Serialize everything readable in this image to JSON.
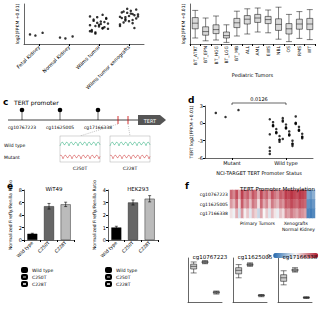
{
  "chart_data": [
    {
      "type": "scatter",
      "ylabel": "log2(FPKM +0.01)",
      "categories": [
        "Fetal Kidney",
        "Normal Kidney",
        "Wilms tumor",
        "Wilms tumor xenografts"
      ],
      "values": [
        [
          -3.6,
          -3.2,
          -3.9
        ],
        [
          -4.4,
          -4.1,
          -4.6
        ],
        [
          -2.8,
          -2.1,
          -1.5,
          -0.9,
          -0.4,
          0.1,
          0.5,
          -1.2,
          -2.5,
          -1.8,
          -0.7,
          0.9,
          1.3,
          -3.1,
          -2.2,
          -1.0,
          -0.2,
          0.3,
          -1.6,
          -2.9,
          -0.5,
          0.7,
          -1.3,
          -2.0,
          -3.4
        ],
        [
          -1.5,
          -0.8,
          0.2,
          0.9,
          1.6,
          2.1,
          2.6,
          -0.3,
          0.5,
          1.2,
          1.8,
          -1.1,
          0.0,
          0.7,
          1.4,
          2.3,
          -0.6,
          0.4,
          1.0,
          1.9,
          -2.0,
          2.8,
          0.8,
          1.5,
          -0.1
        ]
      ],
      "color": "#000000",
      "ylim": [
        -6,
        4
      ],
      "tick_labels": "x",
      "grid": false
    },
    {
      "type": "boxplot",
      "xlabel": "Pediatric Tumors",
      "ylabel": "log2(FPKM +0.01)",
      "categories": [
        "BT_ATRT",
        "BT_EPN",
        "BT_HGG",
        "BT_LGG",
        "BT_MB",
        "ALL",
        "AML",
        "EWS",
        "NBL",
        "OS",
        "RMS",
        "WT"
      ],
      "values": [
        [
          -4.5,
          -2.2,
          -0.8,
          0.6,
          2.4
        ],
        [
          -5.2,
          -3.8,
          -2.9,
          -1.7,
          0.5
        ],
        [
          -5.0,
          -3.4,
          -2.4,
          -1.2,
          1.0
        ],
        [
          -5.6,
          -4.5,
          -3.9,
          -3.0,
          -1.2
        ],
        [
          -4.0,
          -1.9,
          -0.7,
          0.4,
          2.2
        ],
        [
          -3.5,
          -1.0,
          0.2,
          1.1,
          2.8
        ],
        [
          -3.0,
          -0.6,
          0.5,
          1.4,
          3.0
        ],
        [
          -3.2,
          -0.9,
          0.1,
          0.9,
          2.5
        ],
        [
          -4.8,
          -2.6,
          -1.1,
          0.3,
          3.2
        ],
        [
          -5.4,
          -3.5,
          -2.2,
          -0.9,
          1.4
        ],
        [
          -4.6,
          -2.3,
          -1.0,
          0.2,
          2.1
        ],
        [
          -4.9,
          -2.4,
          -1.0,
          0.4,
          2.6
        ]
      ],
      "color": "#d9d9d9",
      "ylim": [
        -6,
        4
      ],
      "tick_labels": "x",
      "grid": false
    },
    {
      "label": "d",
      "type": "scatter",
      "xlabel": "NCI-TARGET TERT Promoter Status",
      "ylabel": "TERT log2(FPKM +0.01)",
      "categories": [
        "Mutant",
        "Wild type"
      ],
      "values": [
        [
          1.8,
          2.3,
          1.1
        ],
        [
          -4.8,
          -3.9,
          -3.2,
          -2.6,
          -2.1,
          -1.7,
          -1.3,
          -0.9,
          -0.5,
          -0.1,
          0.3,
          0.7,
          -3.5,
          -2.9,
          -2.3,
          -1.9,
          -1.5,
          -1.1,
          -0.7,
          -0.3,
          0.1,
          0.5,
          -4.2,
          -3.6,
          -2.8,
          -2.4,
          -2.0,
          -1.6,
          -1.2,
          -0.8,
          -0.4,
          0.0,
          0.9,
          -5.3,
          -3.0,
          -2.2,
          -1.8,
          -1.4,
          -1.0,
          -0.6,
          -0.2,
          0.2,
          1.2,
          -2.7,
          -1.9
        ]
      ],
      "color": "#000000",
      "ylim": [
        -6,
        3
      ],
      "yticks": [
        -6,
        -3,
        0,
        3
      ],
      "annotation": "0.0126",
      "grid": false
    },
    {
      "label": "e",
      "type": "bar",
      "title": "WiT49",
      "ylabel": "Normalized Firefly/Renilla Ratio",
      "categories": [
        "Wild type",
        "C250T",
        "C228T"
      ],
      "values": [
        1,
        5.4,
        5.7
      ],
      "errors": [
        0.08,
        0.45,
        0.35
      ],
      "colors": [
        "#000000",
        "#666666",
        "#bbbbbb"
      ],
      "ylim": [
        0,
        8
      ],
      "yticks": [
        0,
        2,
        4,
        6,
        8
      ],
      "legend": "bottom",
      "grid": false
    },
    {
      "type": "bar",
      "title": "HEK293",
      "ylabel": "Normalized Firefly/Renilla Ratio",
      "categories": [
        "Wild type",
        "C250T",
        "C228T"
      ],
      "values": [
        1,
        3.0,
        3.3
      ],
      "errors": [
        0.1,
        0.2,
        0.25
      ],
      "colors": [
        "#000000",
        "#666666",
        "#bbbbbb"
      ],
      "ylim": [
        0,
        4
      ],
      "yticks": [
        0,
        1,
        2,
        3,
        4
      ],
      "legend": "bottom",
      "grid": false
    },
    {
      "label": "f",
      "type": "heatmap",
      "title": "TERT Promoter Methylation",
      "rows": [
        "cg10767223",
        "cg11625005",
        "cg17166338"
      ],
      "groups": [
        {
          "name": "Primary Tumors",
          "cells": [
            [
              0.82,
              0.75,
              0.88,
              0.69,
              0.91,
              0.78,
              0.84,
              0.72,
              0.86,
              0.8,
              0.66,
              0.89,
              0.77,
              0.83,
              0.71,
              0.87,
              0.79,
              0.74,
              0.85,
              0.81
            ],
            [
              0.71,
              0.64,
              0.8,
              0.58,
              0.85,
              0.69,
              0.76,
              0.62,
              0.79,
              0.73,
              0.55,
              0.82,
              0.67,
              0.75,
              0.6,
              0.78,
              0.7,
              0.65,
              0.77,
              0.72
            ],
            [
              0.55,
              0.48,
              0.66,
              0.42,
              0.71,
              0.52,
              0.61,
              0.45,
              0.64,
              0.58,
              0.39,
              0.68,
              0.5,
              0.6,
              0.44,
              0.63,
              0.54,
              0.47,
              0.62,
              0.56
            ]
          ]
        },
        {
          "name": "Xenografts",
          "cells": [
            [
              0.92,
              0.89,
              0.94,
              0.9,
              0.87,
              0.93,
              0.91,
              0.88
            ],
            [
              0.86,
              0.83,
              0.89,
              0.84,
              0.81,
              0.88,
              0.85,
              0.82
            ],
            [
              0.74,
              0.7,
              0.78,
              0.72,
              0.68,
              0.76,
              0.73,
              0.69
            ]
          ]
        },
        {
          "name": "Normal Kidney",
          "cells": [
            [
              0.22,
              0.18,
              0.25
            ],
            [
              0.15,
              0.12,
              0.17
            ],
            [
              0.1,
              0.08,
              0.12
            ]
          ]
        }
      ],
      "colorbar_range": [
        0,
        1
      ],
      "colorbar_ticks": [
        0,
        1
      ]
    },
    {
      "type": "boxplot",
      "title": "cg10767223",
      "categories": [
        "Primary Tumors",
        "Xenografts",
        "Normal Kidney"
      ],
      "values": [
        [
          0.66,
          0.75,
          0.81,
          0.86,
          0.91
        ],
        [
          0.87,
          0.885,
          0.905,
          0.925,
          0.94
        ],
        [
          0.18,
          0.2,
          0.22,
          0.235,
          0.25
        ]
      ],
      "color": "#cccccc",
      "ylim": [
        0,
        1
      ],
      "tick_labels": false,
      "grid": false
    },
    {
      "type": "boxplot",
      "title": "cg11625005",
      "categories": [
        "Primary Tumors",
        "Xenografts",
        "Normal Kidney"
      ],
      "values": [
        [
          0.55,
          0.64,
          0.72,
          0.78,
          0.85
        ],
        [
          0.81,
          0.83,
          0.85,
          0.87,
          0.89
        ],
        [
          0.12,
          0.135,
          0.15,
          0.16,
          0.17
        ]
      ],
      "color": "#cccccc",
      "ylim": [
        0,
        1
      ],
      "tick_labels": false,
      "grid": false
    },
    {
      "type": "boxplot",
      "title": "cg17166338",
      "categories": [
        "Primary Tumors",
        "Xenografts",
        "Normal Kidney"
      ],
      "values": [
        [
          0.39,
          0.47,
          0.55,
          0.62,
          0.71
        ],
        [
          0.68,
          0.7,
          0.725,
          0.75,
          0.78
        ],
        [
          0.08,
          0.09,
          0.1,
          0.11,
          0.12
        ]
      ],
      "color": "#cccccc",
      "ylim": [
        0,
        1
      ],
      "tick_labels": false,
      "grid": false
    }
  ],
  "diagram": {
    "label": "c",
    "title": "TERT promoter",
    "gene": "TERT",
    "probes": [
      "cg10767223",
      "cg11625005",
      "cg17166338"
    ],
    "rows": [
      "Wild type",
      "Mutant"
    ],
    "mutations": [
      "C250T",
      "C228T"
    ]
  }
}
